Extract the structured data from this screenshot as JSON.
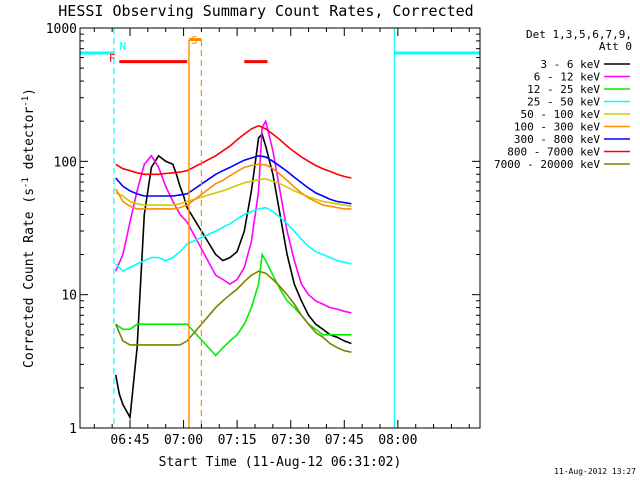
{
  "chart_data": {
    "type": "line",
    "title": "HESSI Observing Summary Count Rates, Corrected",
    "xlabel": "Start Time (11-Aug-12 06:31:02)",
    "ylabel_main": "Corrected Count Rate (s",
    "ylabel_sup1": "-1",
    "ylabel_mid": " detector",
    "ylabel_sup2": "-1",
    "ylabel_end": ")",
    "x_unit": "minutes since 06:31:02",
    "xlim": [
      0,
      112
    ],
    "ylim": [
      1,
      1000
    ],
    "yscale": "log",
    "x_ticks": [
      {
        "label": "06:45",
        "value": 14
      },
      {
        "label": "07:00",
        "value": 29
      },
      {
        "label": "07:15",
        "value": 44
      },
      {
        "label": "07:30",
        "value": 59
      },
      {
        "label": "07:45",
        "value": 74
      },
      {
        "label": "08:00",
        "value": 89
      }
    ],
    "y_ticks": [
      {
        "label": "1",
        "value": 1
      },
      {
        "label": "10",
        "value": 10
      },
      {
        "label": "100",
        "value": 100
      },
      {
        "label": "1000",
        "value": 1000
      }
    ],
    "legend_title_1": "Det 1,3,5,6,7,9,",
    "legend_title_2": "Att 0",
    "legend_position": "right",
    "series": [
      {
        "name": "3 - 6 keV",
        "color": "#000000",
        "x": [
          10,
          11,
          12,
          14,
          16,
          18,
          20,
          22,
          24,
          26,
          27,
          28,
          29,
          30,
          38,
          40,
          42,
          44,
          46,
          48,
          50,
          51,
          52,
          54,
          56,
          58,
          60,
          62,
          64,
          66,
          68,
          70,
          72,
          74,
          76
        ],
        "y": [
          2.5,
          1.8,
          1.5,
          1.2,
          4,
          40,
          90,
          110,
          100,
          95,
          80,
          65,
          55,
          45,
          20,
          18,
          19,
          21,
          30,
          60,
          150,
          160,
          130,
          80,
          40,
          20,
          12,
          9,
          7,
          6,
          5.5,
          5,
          4.8,
          4.5,
          4.3
        ]
      },
      {
        "name": "6 - 12 keV",
        "color": "#ff00ff",
        "x": [
          10,
          12,
          14,
          16,
          18,
          20,
          22,
          24,
          26,
          28,
          30,
          38,
          40,
          42,
          44,
          46,
          48,
          50,
          51,
          52,
          54,
          56,
          58,
          60,
          62,
          64,
          66,
          68,
          70,
          72,
          74,
          76
        ],
        "y": [
          15,
          20,
          35,
          60,
          95,
          110,
          90,
          65,
          50,
          40,
          35,
          14,
          13,
          12,
          13,
          16,
          25,
          60,
          180,
          200,
          120,
          60,
          30,
          18,
          12,
          10,
          9,
          8.5,
          8,
          7.8,
          7.5,
          7.3
        ]
      },
      {
        "name": "12 - 25 keV",
        "color": "#00ee00",
        "x": [
          10,
          12,
          14,
          16,
          18,
          20,
          22,
          24,
          26,
          28,
          30,
          38,
          40,
          42,
          44,
          46,
          48,
          50,
          51,
          52,
          54,
          56,
          58,
          60,
          62,
          64,
          66,
          68,
          70,
          72,
          74,
          76
        ],
        "y": [
          6,
          5.5,
          5.5,
          6,
          6,
          6,
          6,
          6,
          6,
          6,
          6,
          3.5,
          4,
          4.5,
          5,
          6,
          8,
          12,
          20,
          18,
          14,
          11,
          9,
          8,
          7,
          6,
          5.5,
          5,
          5,
          5,
          5,
          5
        ]
      },
      {
        "name": "25 - 50 keV",
        "color": "#00ffff",
        "x": [
          10,
          12,
          14,
          16,
          18,
          20,
          22,
          24,
          26,
          28,
          30,
          38,
          40,
          42,
          44,
          46,
          48,
          50,
          52,
          54,
          56,
          58,
          60,
          62,
          64,
          66,
          68,
          70,
          72,
          74,
          76
        ],
        "y": [
          17,
          15,
          16,
          17,
          18,
          19,
          19,
          18,
          19,
          21,
          24,
          30,
          32,
          34,
          37,
          40,
          42,
          44,
          45,
          42,
          38,
          34,
          30,
          26,
          23,
          21,
          20,
          19,
          18,
          17.5,
          17
        ]
      },
      {
        "name": "50 - 100 keV",
        "color": "#cccc00",
        "x": [
          10,
          12,
          14,
          16,
          18,
          20,
          22,
          24,
          26,
          28,
          30,
          38,
          40,
          42,
          44,
          46,
          48,
          50,
          52,
          54,
          56,
          58,
          60,
          62,
          64,
          66,
          68,
          70,
          72,
          74,
          76
        ],
        "y": [
          58,
          55,
          50,
          48,
          47,
          47,
          47,
          47,
          47,
          48,
          50,
          58,
          60,
          63,
          66,
          69,
          71,
          73,
          74,
          71,
          68,
          64,
          60,
          57,
          54,
          52,
          50,
          49,
          48,
          47,
          46
        ]
      },
      {
        "name": "100 - 300 keV",
        "color": "#ff8c00",
        "x": [
          10,
          12,
          14,
          16,
          18,
          20,
          22,
          24,
          26,
          28,
          30,
          38,
          40,
          42,
          44,
          46,
          48,
          50,
          52,
          54,
          56,
          58,
          60,
          62,
          64,
          66,
          68,
          70,
          72,
          74,
          76
        ],
        "y": [
          62,
          50,
          46,
          44,
          44,
          44,
          44,
          44,
          44,
          45,
          47,
          68,
          72,
          78,
          84,
          90,
          93,
          95,
          94,
          88,
          80,
          72,
          64,
          58,
          53,
          50,
          47,
          46,
          45,
          44,
          44
        ]
      },
      {
        "name": "300 - 800 keV",
        "color": "#0000ff",
        "x": [
          10,
          12,
          14,
          16,
          18,
          20,
          22,
          24,
          26,
          28,
          30,
          38,
          40,
          42,
          44,
          46,
          48,
          50,
          52,
          54,
          56,
          58,
          60,
          62,
          64,
          66,
          68,
          70,
          72,
          74,
          76
        ],
        "y": [
          75,
          65,
          60,
          57,
          55,
          55,
          55,
          55,
          55,
          56,
          57,
          80,
          85,
          90,
          96,
          102,
          106,
          110,
          108,
          100,
          92,
          84,
          76,
          69,
          63,
          58,
          55,
          52,
          50,
          49,
          48
        ]
      },
      {
        "name": "800 - 7000 keV",
        "color": "#ff0000",
        "x": [
          10,
          12,
          14,
          16,
          18,
          20,
          22,
          24,
          26,
          28,
          30,
          38,
          40,
          42,
          44,
          46,
          48,
          50,
          52,
          54,
          56,
          58,
          60,
          62,
          64,
          66,
          68,
          70,
          72,
          74,
          76
        ],
        "y": [
          95,
          88,
          85,
          82,
          80,
          80,
          80,
          81,
          82,
          83,
          85,
          110,
          120,
          130,
          145,
          160,
          175,
          185,
          175,
          160,
          145,
          130,
          118,
          108,
          100,
          93,
          88,
          84,
          80,
          77,
          75
        ]
      },
      {
        "name": "7000 - 20000 keV",
        "color": "#808000",
        "x": [
          10,
          12,
          14,
          16,
          18,
          20,
          22,
          24,
          26,
          28,
          30,
          38,
          40,
          42,
          44,
          46,
          48,
          50,
          52,
          54,
          56,
          58,
          60,
          62,
          64,
          66,
          68,
          70,
          72,
          74,
          76
        ],
        "y": [
          6,
          4.5,
          4.2,
          4.2,
          4.2,
          4.2,
          4.2,
          4.2,
          4.2,
          4.2,
          4.5,
          8,
          9,
          10,
          11,
          12.5,
          14,
          15,
          14.5,
          13,
          11.5,
          10,
          8.5,
          7,
          6,
          5.2,
          4.8,
          4.3,
          4,
          3.8,
          3.7
        ]
      }
    ],
    "annotations": [
      {
        "label": "N",
        "value": 12,
        "color": "#00ffff"
      },
      {
        "label": "S",
        "value": 32,
        "color": "#ff8c00"
      },
      {
        "label": "F",
        "value": 9,
        "color": "#ff0000"
      }
    ],
    "night_intervals": [
      {
        "start": 0,
        "end": 9.5
      },
      {
        "start": 88,
        "end": 112
      }
    ],
    "saa_interval": {
      "start": 30.5,
      "end": 34
    },
    "flare_intervals": [
      {
        "start": 11,
        "end": 30
      },
      {
        "start": 46,
        "end": 52.5
      }
    ]
  },
  "footer": {
    "timestamp": "11-Aug-2012 13:27"
  }
}
